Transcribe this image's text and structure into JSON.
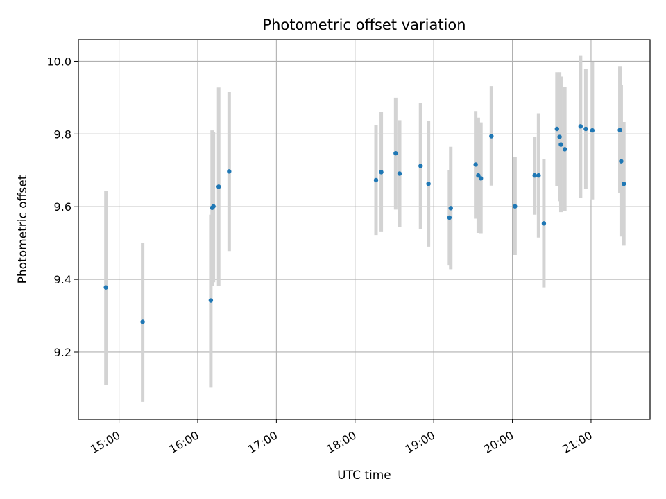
{
  "chart_data": {
    "type": "scatter",
    "title": "Photometric offset variation",
    "xlabel": "UTC time",
    "ylabel": "Photometric offset",
    "x_ticks": [
      "15:00",
      "16:00",
      "17:00",
      "18:00",
      "19:00",
      "20:00",
      "21:00"
    ],
    "y_ticks": [
      "9.2",
      "9.4",
      "9.6",
      "9.8",
      "10.0"
    ],
    "xlim": [
      "14:29",
      "21:45"
    ],
    "ylim": [
      9.015,
      10.06
    ],
    "grid": true,
    "marker_color": "#1f77b4",
    "errorbar_color": "#d3d3d3",
    "points": [
      {
        "t": "14:50",
        "y": 9.378,
        "lo": 9.11,
        "hi": 9.643
      },
      {
        "t": "15:18",
        "y": 9.283,
        "lo": 9.063,
        "hi": 9.5
      },
      {
        "t": "16:10",
        "y": 9.342,
        "lo": 9.102,
        "hi": 9.578
      },
      {
        "t": "16:11",
        "y": 9.597,
        "lo": 9.382,
        "hi": 9.81
      },
      {
        "t": "16:12",
        "y": 9.601,
        "lo": 9.392,
        "hi": 9.806
      },
      {
        "t": "16:16",
        "y": 9.655,
        "lo": 9.382,
        "hi": 9.928
      },
      {
        "t": "16:24",
        "y": 9.697,
        "lo": 9.478,
        "hi": 9.915
      },
      {
        "t": "18:16",
        "y": 9.673,
        "lo": 9.522,
        "hi": 9.825
      },
      {
        "t": "18:20",
        "y": 9.695,
        "lo": 9.53,
        "hi": 9.86
      },
      {
        "t": "18:31",
        "y": 9.747,
        "lo": 9.592,
        "hi": 9.9
      },
      {
        "t": "18:34",
        "y": 9.691,
        "lo": 9.545,
        "hi": 9.838
      },
      {
        "t": "18:50",
        "y": 9.712,
        "lo": 9.538,
        "hi": 9.885
      },
      {
        "t": "18:56",
        "y": 9.663,
        "lo": 9.49,
        "hi": 9.835
      },
      {
        "t": "19:12",
        "y": 9.57,
        "lo": 9.438,
        "hi": 9.7
      },
      {
        "t": "19:13",
        "y": 9.596,
        "lo": 9.428,
        "hi": 9.765
      },
      {
        "t": "19:32",
        "y": 9.716,
        "lo": 9.567,
        "hi": 9.863
      },
      {
        "t": "19:34",
        "y": 9.686,
        "lo": 9.528,
        "hi": 9.845
      },
      {
        "t": "19:36",
        "y": 9.678,
        "lo": 9.527,
        "hi": 9.832
      },
      {
        "t": "19:44",
        "y": 9.794,
        "lo": 9.658,
        "hi": 9.932
      },
      {
        "t": "20:02",
        "y": 9.601,
        "lo": 9.467,
        "hi": 9.736
      },
      {
        "t": "20:17",
        "y": 9.686,
        "lo": 9.578,
        "hi": 9.792
      },
      {
        "t": "20:20",
        "y": 9.686,
        "lo": 9.515,
        "hi": 9.857
      },
      {
        "t": "20:24",
        "y": 9.554,
        "lo": 9.378,
        "hi": 9.73
      },
      {
        "t": "20:34",
        "y": 9.814,
        "lo": 9.657,
        "hi": 9.97
      },
      {
        "t": "20:36",
        "y": 9.792,
        "lo": 9.615,
        "hi": 9.97
      },
      {
        "t": "20:37",
        "y": 9.771,
        "lo": 9.585,
        "hi": 9.958
      },
      {
        "t": "20:40",
        "y": 9.758,
        "lo": 9.587,
        "hi": 9.93
      },
      {
        "t": "20:52",
        "y": 9.821,
        "lo": 9.625,
        "hi": 10.015
      },
      {
        "t": "20:56",
        "y": 9.814,
        "lo": 9.648,
        "hi": 9.98
      },
      {
        "t": "21:01",
        "y": 9.81,
        "lo": 9.62,
        "hi": 9.998
      },
      {
        "t": "21:22",
        "y": 9.811,
        "lo": 9.637,
        "hi": 9.987
      },
      {
        "t": "21:23",
        "y": 9.725,
        "lo": 9.518,
        "hi": 9.935
      },
      {
        "t": "21:25",
        "y": 9.663,
        "lo": 9.493,
        "hi": 9.833
      }
    ]
  }
}
